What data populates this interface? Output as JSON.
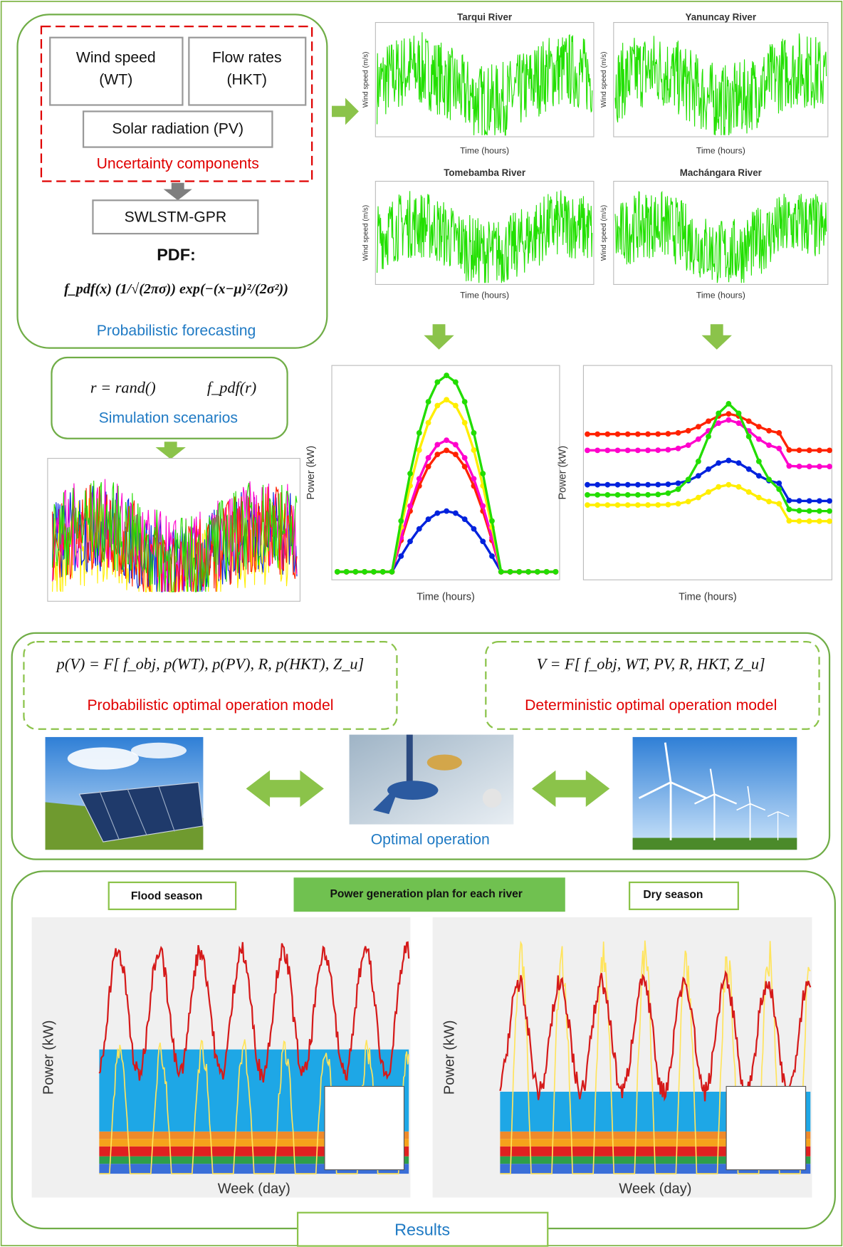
{
  "forecasting": {
    "wind_speed": [
      "Wind speed",
      "(WT)"
    ],
    "flow_rates": [
      "Flow rates",
      "(HKT)"
    ],
    "solar": "Solar radiation (PV)",
    "uncertainty": "Uncertainty components",
    "model": "SWLSTM-GPR",
    "pdf_title": "PDF:",
    "pdf_formula": "f_pdf(x) (1/√(2πσ)) exp(−(x−μ)²/(2σ²))",
    "caption": "Probabilistic forecasting"
  },
  "river_charts": [
    {
      "title": "Tarqui River",
      "ylabel": "Wind speed (m/s)",
      "xlabel": "Time (hours)"
    },
    {
      "title": "Yanuncay River",
      "ylabel": "Wind speed (m/s)",
      "xlabel": "Time (hours)"
    },
    {
      "title": "Tomebamba River",
      "ylabel": "Wind speed (m/s)",
      "xlabel": "Time (hours)"
    },
    {
      "title": "Machángara River",
      "ylabel": "Wind speed (m/s)",
      "xlabel": "Time (hours)"
    }
  ],
  "simulation": {
    "formula_r": "r = rand()",
    "formula_f": "f_pdf(r)",
    "caption": "Simulation scenarios"
  },
  "power_charts": [
    {
      "ylabel": "Power (kW)",
      "xlabel": "Time (hours)"
    },
    {
      "ylabel": "Power (kW)",
      "xlabel": "Time (hours)"
    }
  ],
  "operation": {
    "prob_formula": "p(V) = F[ f_obj, p(WT), p(PV), R, p(HKT), Z_u]",
    "prob_model": "Probabilistic optimal operation model",
    "det_formula": "V = F[ f_obj, WT, PV, R, HKT, Z_u]",
    "det_model": "Deterministic optimal operation model",
    "caption": "Optimal operation"
  },
  "results": {
    "flood": "Flood season",
    "plan": "Power generation plan for each river",
    "dry": "Dry season",
    "ylabel": "Power (kW)",
    "xlabel": "Week (day)",
    "caption": "Results"
  }
}
